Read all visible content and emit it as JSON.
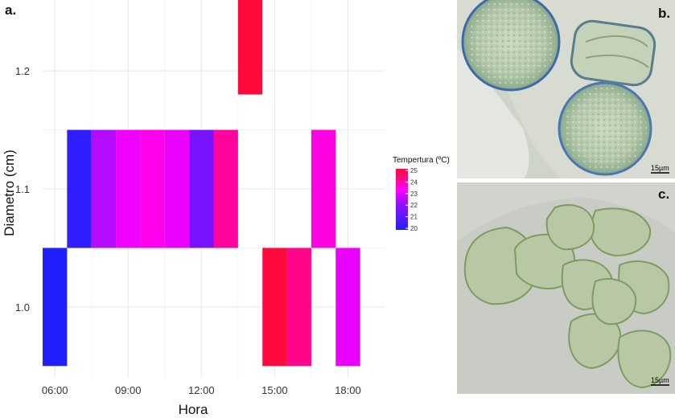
{
  "panel_labels": {
    "a": "a.",
    "b": "b.",
    "c": "c."
  },
  "chart_data": {
    "type": "heatmap",
    "title": "",
    "xlabel": "Hora",
    "ylabel": "Diametro (cm)",
    "x_ticks": [
      "06:00",
      "09:00",
      "12:00",
      "15:00",
      "18:00"
    ],
    "x_tick_positions": [
      6,
      9,
      12,
      15,
      18
    ],
    "xlim": [
      5.5,
      19.5
    ],
    "y_ticks": [
      "1.0",
      "1.1",
      "1.2"
    ],
    "y_tick_values": [
      1.0,
      1.1,
      1.2
    ],
    "ylim": [
      0.94,
      1.26
    ],
    "cells": [
      {
        "hour": 6,
        "diameter": 1.0,
        "temperature": 20.0
      },
      {
        "hour": 7,
        "diameter": 1.1,
        "temperature": 20.2
      },
      {
        "hour": 8,
        "diameter": 1.1,
        "temperature": 22.0
      },
      {
        "hour": 9,
        "diameter": 1.1,
        "temperature": 22.8
      },
      {
        "hour": 10,
        "diameter": 1.1,
        "temperature": 23.2
      },
      {
        "hour": 11,
        "diameter": 1.1,
        "temperature": 22.7
      },
      {
        "hour": 12,
        "diameter": 1.1,
        "temperature": 21.2
      },
      {
        "hour": 13,
        "diameter": 1.1,
        "temperature": 24.0
      },
      {
        "hour": 14,
        "diameter": 1.23,
        "temperature": 25.0
      },
      {
        "hour": 15,
        "diameter": 1.0,
        "temperature": 25.0
      },
      {
        "hour": 16,
        "diameter": 1.0,
        "temperature": 24.2
      },
      {
        "hour": 17,
        "diameter": 1.1,
        "temperature": 23.3
      },
      {
        "hour": 18,
        "diameter": 1.0,
        "temperature": 22.7
      }
    ],
    "legend": {
      "title": "Tempertura (ºC)",
      "ticks": [
        "20",
        "21",
        "22",
        "23",
        "24",
        "25"
      ],
      "tick_values": [
        20,
        21,
        22,
        23,
        24,
        25
      ],
      "range": [
        20,
        25
      ],
      "placement": "right",
      "low_color": "#2020ff",
      "mid_color": "#ff00ff",
      "high_color": "#ff0a3c"
    },
    "grid": true
  },
  "micrographs": {
    "b": {
      "scale_bar": "15µm"
    },
    "c": {
      "scale_bar": "15µm"
    }
  }
}
